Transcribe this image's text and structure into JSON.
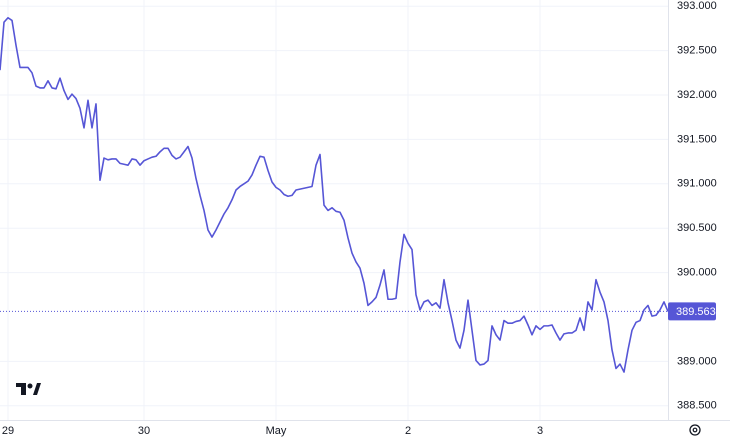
{
  "chart_data": {
    "type": "line",
    "color": "#5656d6",
    "ylim": [
      388.34,
      393.07
    ],
    "yticks": [
      {
        "value": 388.5,
        "label": "388.500"
      },
      {
        "value": 389,
        "label": "389.000"
      },
      {
        "value": 390,
        "label": "390.000"
      },
      {
        "value": 390.5,
        "label": "390.500"
      },
      {
        "value": 391,
        "label": "391.000"
      },
      {
        "value": 391.5,
        "label": "391.500"
      },
      {
        "value": 392,
        "label": "392.000"
      },
      {
        "value": 392.5,
        "label": "392.500"
      },
      {
        "value": 393,
        "label": "393.000"
      }
    ],
    "grid": true,
    "categories": [
      null,
      null,
      "29",
      null,
      null,
      null,
      null,
      null,
      null,
      null,
      null,
      null,
      null,
      null,
      null,
      null,
      null,
      null,
      null,
      null,
      null,
      null,
      null,
      null,
      null,
      null,
      null,
      null,
      null,
      null,
      null,
      null,
      null,
      null,
      null,
      null,
      "30",
      null,
      null,
      null,
      null,
      null,
      null,
      null,
      null,
      null,
      null,
      null,
      null,
      null,
      null,
      null,
      null,
      null,
      null,
      null,
      null,
      null,
      null,
      null,
      null,
      null,
      null,
      null,
      null,
      null,
      null,
      null,
      null,
      "May",
      null,
      null,
      null,
      null,
      null,
      null,
      null,
      null,
      null,
      null,
      null,
      null,
      null,
      null,
      null,
      null,
      null,
      null,
      null,
      null,
      null,
      null,
      null,
      null,
      null,
      null,
      null,
      null,
      null,
      null,
      null,
      null,
      "2",
      null,
      null,
      null,
      null,
      null,
      null,
      null,
      null,
      null,
      null,
      null,
      null,
      null,
      null,
      null,
      null,
      null,
      null,
      null,
      null,
      null,
      null,
      null,
      null,
      null,
      null,
      null,
      null,
      null,
      null,
      null,
      null,
      "3",
      null,
      null,
      null,
      null,
      null,
      null,
      null,
      null,
      null,
      null,
      null,
      null,
      null,
      null,
      null,
      null,
      null,
      null,
      null,
      null,
      null,
      null,
      null,
      null,
      null,
      null,
      null,
      null,
      null,
      null,
      null,
      null
    ],
    "values": [
      392.28,
      392.82,
      392.87,
      392.84,
      392.56,
      392.31,
      392.31,
      392.31,
      392.25,
      392.1,
      392.08,
      392.08,
      392.16,
      392.08,
      392.07,
      392.19,
      392.05,
      391.95,
      392.01,
      391.96,
      391.85,
      391.63,
      391.94,
      391.63,
      391.9,
      391.04,
      391.29,
      391.27,
      391.28,
      391.28,
      391.23,
      391.22,
      391.21,
      391.28,
      391.27,
      391.21,
      391.26,
      391.28,
      391.3,
      391.31,
      391.36,
      391.4,
      391.4,
      391.32,
      391.28,
      391.3,
      391.36,
      391.42,
      391.29,
      391.06,
      390.87,
      390.7,
      390.48,
      390.4,
      390.48,
      390.57,
      390.66,
      390.73,
      390.82,
      390.93,
      390.97,
      391.0,
      391.03,
      391.1,
      391.21,
      391.31,
      391.3,
      391.15,
      391.02,
      390.96,
      390.93,
      390.88,
      390.86,
      390.87,
      390.93,
      390.94,
      390.95,
      390.96,
      390.97,
      391.21,
      391.33,
      390.76,
      390.7,
      390.73,
      390.69,
      390.68,
      390.59,
      390.39,
      390.22,
      390.12,
      390.05,
      389.88,
      389.63,
      389.67,
      389.72,
      389.86,
      390.03,
      389.7,
      389.7,
      389.71,
      390.12,
      390.43,
      390.33,
      390.26,
      389.75,
      389.58,
      389.67,
      389.69,
      389.63,
      389.66,
      389.6,
      389.92,
      389.66,
      389.46,
      389.24,
      389.15,
      389.35,
      389.69,
      389.35,
      389.01,
      388.96,
      388.97,
      389.01,
      389.4,
      389.3,
      389.24,
      389.46,
      389.43,
      389.43,
      389.45,
      389.46,
      389.51,
      389.41,
      389.3,
      389.4,
      389.36,
      389.4,
      389.4,
      389.41,
      389.32,
      389.24,
      389.31,
      389.32,
      389.32,
      389.35,
      389.49,
      389.35,
      389.67,
      389.58,
      389.92,
      389.78,
      389.67,
      389.46,
      389.13,
      388.92,
      388.97,
      388.88,
      389.13,
      389.35,
      389.44,
      389.46,
      389.58,
      389.63,
      389.51,
      389.52,
      389.58,
      389.67,
      389.563
    ]
  }
}
